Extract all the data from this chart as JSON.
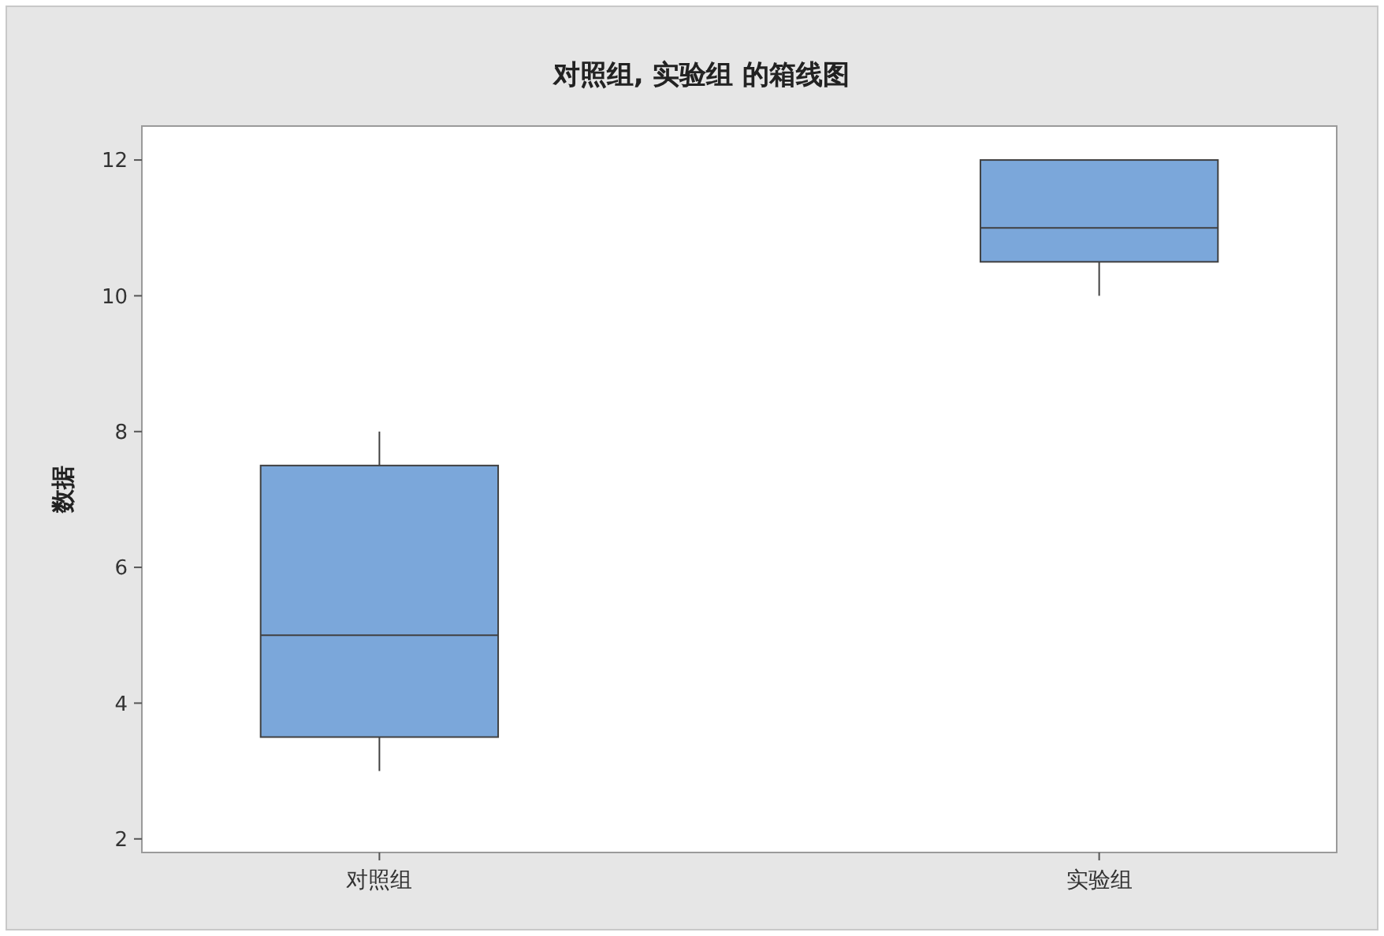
{
  "chart_data": {
    "type": "box",
    "title": "对照组, 实验组 的箱线图",
    "ylabel": "数据",
    "categories": [
      "对照组",
      "实验组"
    ],
    "color": "#7ba7da",
    "boxes": [
      {
        "low": 3,
        "q1": 3.5,
        "median": 5,
        "q3": 7.5,
        "high": 8
      },
      {
        "low": 10,
        "q1": 10.5,
        "median": 11,
        "q3": 12,
        "high": 12
      }
    ],
    "ylim": [
      1.8,
      12.5
    ],
    "yticks": [
      2,
      4,
      6,
      8,
      10,
      12
    ],
    "grid": false
  }
}
